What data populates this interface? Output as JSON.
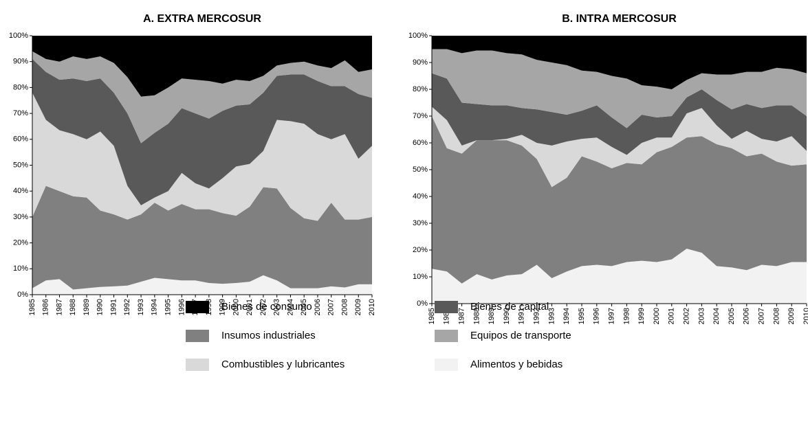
{
  "chart_data": [
    {
      "type": "area",
      "title": "A.    EXTRA MERCOSUR",
      "categories": [
        "1985",
        "1986",
        "1987",
        "1988",
        "1989",
        "1990",
        "1991",
        "1992",
        "1993",
        "1994",
        "1995",
        "1996",
        "1997",
        "1998",
        "1999",
        "2000",
        "2001",
        "2002",
        "2003",
        "2004",
        "2005",
        "2006",
        "2007",
        "2008",
        "2009",
        "2010"
      ],
      "stacked": true,
      "ylim": [
        0,
        100
      ],
      "yticks": [
        {
          "value": 0,
          "label": "0%"
        },
        {
          "value": 10,
          "label": "10%"
        },
        {
          "value": 20,
          "label": "20%"
        },
        {
          "value": 30,
          "label": "30%"
        },
        {
          "value": 40,
          "label": "40%"
        },
        {
          "value": 50,
          "label": "50%"
        },
        {
          "value": 60,
          "label": "60%"
        },
        {
          "value": 70,
          "label": "70%"
        },
        {
          "value": 80,
          "label": "80%"
        },
        {
          "value": 90,
          "label": "90%"
        },
        {
          "value": 100,
          "label": "100%"
        }
      ],
      "series": [
        {
          "name": "Alimentos y bebidas",
          "color": "#f2f2f2",
          "values": [
            2.5,
            5.5,
            6,
            2,
            2.5,
            3,
            3.2,
            3.5,
            5,
            6.5,
            6,
            5.5,
            5.5,
            4.5,
            4.2,
            4.5,
            5,
            7.5,
            5.5,
            2.5,
            2.5,
            2.5,
            3.2,
            2.8,
            4,
            4
          ]
        },
        {
          "name": "Insumos industriales",
          "color": "#808080",
          "values": [
            27.5,
            36.5,
            34,
            36,
            35,
            29.5,
            27.8,
            25.5,
            26,
            29,
            26.5,
            29.5,
            27.5,
            28.5,
            27.3,
            26,
            29,
            34,
            35.5,
            31,
            27,
            26,
            32.3,
            26.2,
            25,
            26
          ]
        },
        {
          "name": "Combustibles y lubricantes",
          "color": "#d9d9d9",
          "values": [
            48,
            25.5,
            23.5,
            24,
            22.5,
            30.5,
            26.5,
            13,
            3.5,
            2,
            7.5,
            12,
            10,
            8,
            13.5,
            19,
            16.5,
            14,
            26.5,
            33.5,
            36.5,
            33.5,
            24.5,
            33,
            23.5,
            27.5
          ]
        },
        {
          "name": "Bienes de capital",
          "color": "#595959",
          "values": [
            13,
            18.5,
            19.5,
            21.5,
            22.5,
            20.5,
            20.5,
            28,
            24,
            25,
            26,
            25,
            27,
            27,
            26,
            23.5,
            23,
            22.5,
            17,
            18,
            19,
            20.5,
            20.5,
            18.5,
            25,
            18.5
          ]
        },
        {
          "name": "Equipos de transporte",
          "color": "#a6a6a6",
          "values": [
            3,
            5,
            7,
            8.5,
            8.5,
            8.5,
            11.5,
            14,
            18,
            14.5,
            14,
            11.5,
            13,
            14.5,
            10.5,
            10,
            9,
            6.5,
            4,
            4.5,
            5,
            6,
            7,
            10,
            8.5,
            11
          ]
        },
        {
          "name": "Bienes de consumo",
          "color": "#000000",
          "values": [
            6,
            9,
            10,
            8,
            9,
            8,
            10.5,
            16,
            23.5,
            23,
            20,
            16.5,
            17,
            17.5,
            18.5,
            17,
            17.5,
            15.5,
            11.5,
            10.5,
            10,
            11.5,
            12.5,
            9.5,
            14,
            13
          ]
        }
      ]
    },
    {
      "type": "area",
      "title": "B.    INTRA MERCOSUR",
      "categories": [
        "1985",
        "1986",
        "1987",
        "1988",
        "1989",
        "1990",
        "1991",
        "1992",
        "1993",
        "1994",
        "1995",
        "1996",
        "1997",
        "1998",
        "1999",
        "2000",
        "2001",
        "2002",
        "2003",
        "2004",
        "2005",
        "2006",
        "2007",
        "2008",
        "2009",
        "2010"
      ],
      "stacked": true,
      "ylim": [
        0,
        100
      ],
      "yticks": [
        {
          "value": 0,
          "label": "0%"
        },
        {
          "value": 10,
          "label": "10%"
        },
        {
          "value": 20,
          "label": "20%"
        },
        {
          "value": 30,
          "label": "30%"
        },
        {
          "value": 40,
          "label": "40%"
        },
        {
          "value": 50,
          "label": "50%"
        },
        {
          "value": 60,
          "label": "60%"
        },
        {
          "value": 70,
          "label": "70%"
        },
        {
          "value": 80,
          "label": "80%"
        },
        {
          "value": 90,
          "label": "90%"
        },
        {
          "value": 100,
          "label": "100%"
        }
      ],
      "series": [
        {
          "name": "Alimentos y bebidas",
          "color": "#f2f2f2",
          "values": [
            13,
            12,
            7.5,
            11,
            9,
            10.5,
            11,
            14.5,
            9.5,
            12,
            14,
            14.5,
            14,
            15.5,
            16,
            15.5,
            16.5,
            20.5,
            19,
            14,
            13.5,
            12.5,
            14.5,
            14,
            15.5,
            15.5
          ]
        },
        {
          "name": "Insumos industriales",
          "color": "#808080",
          "values": [
            57,
            46,
            48.5,
            50,
            52,
            50.5,
            48,
            39.5,
            34,
            35,
            41,
            38.5,
            36.5,
            37,
            36,
            41,
            42,
            41.5,
            43.5,
            45.5,
            44.5,
            42.5,
            41.5,
            39,
            36,
            36.5
          ]
        },
        {
          "name": "Combustibles y lubricantes",
          "color": "#d9d9d9",
          "values": [
            3.5,
            10.5,
            3,
            0,
            0,
            0.5,
            4,
            6,
            15.5,
            13.5,
            6.5,
            9,
            8,
            3,
            8,
            5.5,
            3.5,
            9,
            10.5,
            7,
            3.5,
            9.5,
            5.5,
            7.5,
            11,
            5
          ]
        },
        {
          "name": "Bienes de capital",
          "color": "#595959",
          "values": [
            12.5,
            15.5,
            16,
            13.5,
            13,
            12.5,
            10,
            12.5,
            12.5,
            10,
            10.5,
            12,
            11,
            10,
            10.5,
            7.5,
            8,
            6,
            7,
            9.5,
            11,
            10,
            11.5,
            13.5,
            11.5,
            13
          ]
        },
        {
          "name": "Equipos de transporte",
          "color": "#a6a6a6",
          "values": [
            9,
            11,
            18.5,
            20,
            20.5,
            19.5,
            20,
            18.5,
            18.5,
            18.5,
            15,
            12.5,
            15.5,
            18.5,
            11,
            11.5,
            10,
            6.5,
            6,
            9.5,
            13,
            12,
            13.5,
            14,
            13.5,
            16
          ]
        },
        {
          "name": "Bienes de consumo",
          "color": "#000000",
          "values": [
            5,
            5,
            6.5,
            5.5,
            5.5,
            6.5,
            7,
            9,
            10,
            11,
            13,
            13.5,
            15,
            16,
            18.5,
            19,
            20,
            16.5,
            14,
            14.5,
            14.5,
            13.5,
            13.5,
            12,
            12.5,
            14
          ]
        }
      ]
    }
  ]
}
